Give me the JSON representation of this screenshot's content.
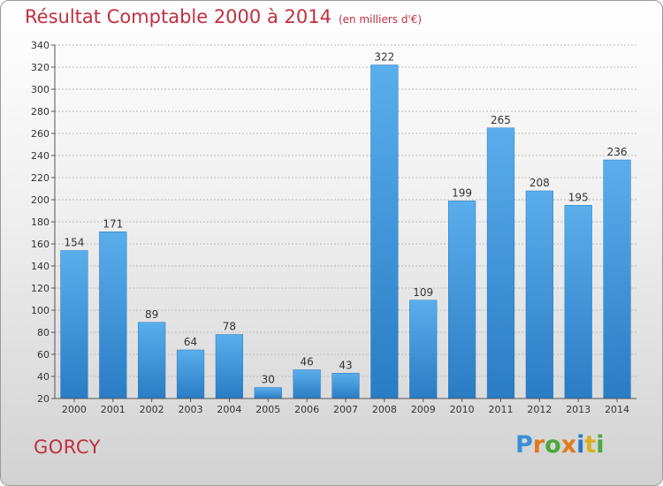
{
  "chart_data": {
    "type": "bar",
    "title": "Résultat Comptable 2000 à 2014",
    "subtitle": "(en milliers d'€)",
    "categories": [
      "2000",
      "2001",
      "2002",
      "2003",
      "2004",
      "2005",
      "2006",
      "2007",
      "2008",
      "2009",
      "2010",
      "2011",
      "2012",
      "2013",
      "2014"
    ],
    "values": [
      154,
      171,
      89,
      64,
      78,
      30,
      46,
      43,
      322,
      109,
      199,
      265,
      208,
      195,
      236
    ],
    "ylim": [
      20,
      340
    ],
    "yticks": [
      20,
      40,
      60,
      80,
      100,
      120,
      140,
      160,
      180,
      200,
      220,
      240,
      260,
      280,
      300,
      320,
      340
    ],
    "grid": true,
    "bar_color": "#3d93d9"
  },
  "footer": {
    "commune": "GORCY",
    "logo_text": "Proxiti",
    "logo_letters": [
      "P",
      "r",
      "o",
      "x",
      "i",
      "t",
      "i"
    ]
  }
}
